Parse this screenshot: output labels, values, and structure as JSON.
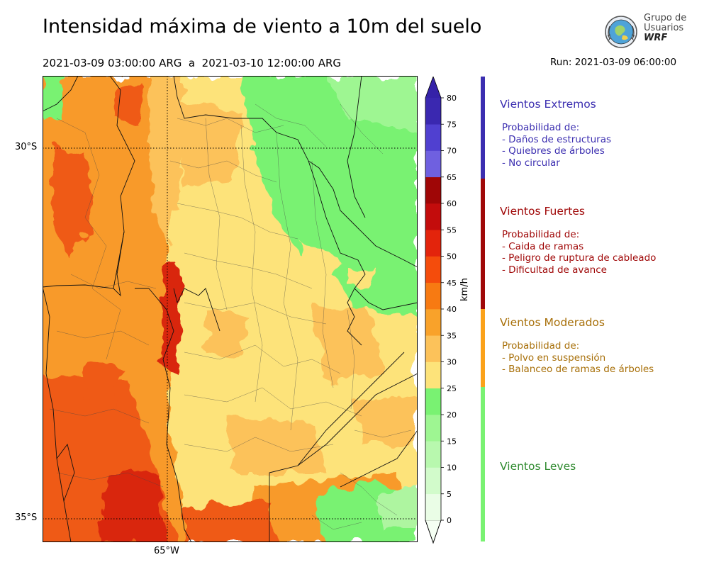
{
  "header": {
    "title": "Intensidad máxima de viento a 10m del suelo",
    "period": "2021-03-09 03:00:00 ARG  a  2021-03-10 12:00:00 ARG",
    "run": "Run: 2021-03-09 06:00:00"
  },
  "logo": {
    "line1": "Grupo de",
    "line2": "Usuarios",
    "line3": "WRF"
  },
  "map": {
    "lat_labels": [
      "30°S",
      "35°S"
    ],
    "lon_labels": [
      "65°W"
    ],
    "field_colors": {
      "moderate_light": "#fde37a",
      "moderate": "#fcc25a",
      "strong_orange": "#f89a2a",
      "strong_red": "#ef5a18",
      "very_strong": "#d9250e",
      "light_green": "#7ff57a",
      "pale_green": "#aef5a0"
    }
  },
  "colorbar": {
    "unit": "km/h",
    "ticks": [
      "0",
      "5",
      "10",
      "15",
      "20",
      "25",
      "30",
      "35",
      "40",
      "45",
      "50",
      "55",
      "60",
      "65",
      "70",
      "75",
      "80"
    ],
    "bins": [
      {
        "min": 0,
        "max": 5,
        "color": "#eafde6"
      },
      {
        "min": 5,
        "max": 10,
        "color": "#d2fbcb"
      },
      {
        "min": 10,
        "max": 15,
        "color": "#b8f8ae"
      },
      {
        "min": 15,
        "max": 20,
        "color": "#9ef692"
      },
      {
        "min": 20,
        "max": 25,
        "color": "#79f272"
      },
      {
        "min": 25,
        "max": 30,
        "color": "#fde37a"
      },
      {
        "min": 30,
        "max": 35,
        "color": "#fcc25a"
      },
      {
        "min": 35,
        "max": 40,
        "color": "#f9a22a"
      },
      {
        "min": 40,
        "max": 45,
        "color": "#f77a12"
      },
      {
        "min": 45,
        "max": 50,
        "color": "#f44c0c"
      },
      {
        "min": 50,
        "max": 55,
        "color": "#e3240c"
      },
      {
        "min": 55,
        "max": 60,
        "color": "#c30c0c"
      },
      {
        "min": 60,
        "max": 65,
        "color": "#9f0606"
      },
      {
        "min": 65,
        "max": 70,
        "color": "#6f60e0"
      },
      {
        "min": 70,
        "max": 75,
        "color": "#5040d0"
      },
      {
        "min": 75,
        "max": 80,
        "color": "#3a28b0"
      }
    ],
    "under_color": "#f5fff3",
    "over_color": "#3522a8"
  },
  "categories": [
    {
      "title": "Vientos Extremos",
      "color": "#3b2eb0",
      "bar_color": "#3b2eb0",
      "desc": [
        "Probabilidad de:",
        "- Daños de estructuras",
        "- Quiebres de árboles",
        "- No circular"
      ]
    },
    {
      "title": "Vientos Fuertes",
      "color": "#a00808",
      "bar_color": "#a00808",
      "desc": [
        "Probabilidad de:",
        "- Caida de ramas",
        "- Peligro de ruptura de cableado",
        "- Dificultad de avance"
      ]
    },
    {
      "title": "Vientos Moderados",
      "color": "#a8700a",
      "bar_color": "#fba21a",
      "desc": [
        "Probabilidad de:",
        "- Polvo en suspensión",
        "- Balanceo de ramas de árboles"
      ]
    },
    {
      "title": "Vientos Leves",
      "color": "#2f8a2f",
      "bar_color": "#79f272",
      "desc": []
    }
  ]
}
